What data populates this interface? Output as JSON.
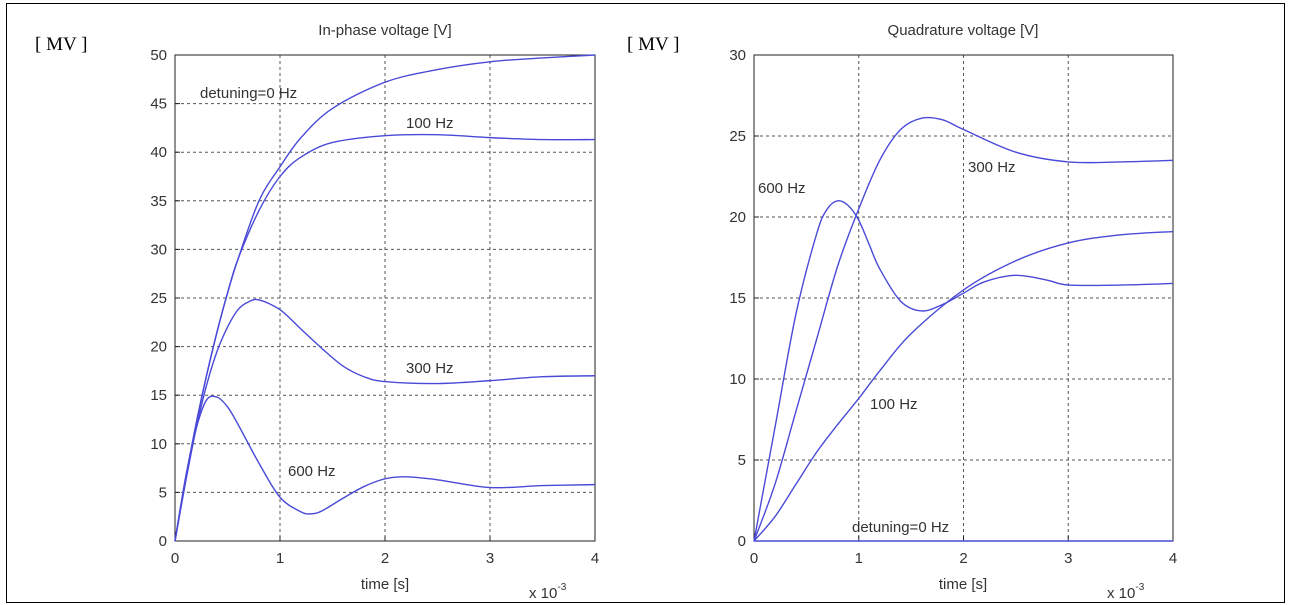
{
  "chart_data": [
    {
      "type": "line",
      "title": "In-phase voltage [V]",
      "unit_label": "[ MV ]",
      "xlabel": "time [s]",
      "x_multiplier": "x 10",
      "x_multiplier_exp": "-3",
      "xlim": [
        0,
        4
      ],
      "ylim": [
        0,
        50
      ],
      "xticks": [
        0,
        1,
        2,
        3,
        4
      ],
      "yticks": [
        0,
        5,
        10,
        15,
        20,
        25,
        30,
        35,
        40,
        45,
        50
      ],
      "grid": true,
      "series": [
        {
          "name": "detuning=0 Hz",
          "x": [
            0,
            0.1,
            0.2,
            0.3,
            0.4,
            0.5,
            0.6,
            0.8,
            1.0,
            1.2,
            1.5,
            2.0,
            2.5,
            3.0,
            3.5,
            4.0
          ],
          "y": [
            0,
            6.3,
            12,
            17,
            21.5,
            25.5,
            29,
            35,
            38.5,
            41.5,
            44.5,
            47.2,
            48.5,
            49.3,
            49.7,
            50
          ]
        },
        {
          "name": "100 Hz",
          "x": [
            0,
            0.1,
            0.2,
            0.3,
            0.4,
            0.5,
            0.6,
            0.8,
            1.0,
            1.2,
            1.5,
            2.0,
            2.5,
            3.0,
            3.5,
            4.0
          ],
          "y": [
            0,
            6.3,
            12,
            17,
            21.5,
            25.5,
            29,
            34,
            37.5,
            39.5,
            41,
            41.7,
            41.8,
            41.5,
            41.3,
            41.3
          ]
        },
        {
          "name": "300 Hz",
          "x": [
            0,
            0.1,
            0.2,
            0.3,
            0.4,
            0.5,
            0.6,
            0.7,
            0.8,
            1.0,
            1.2,
            1.4,
            1.6,
            1.8,
            2.0,
            2.5,
            3.0,
            3.5,
            4.0
          ],
          "y": [
            0,
            6,
            11.5,
            16,
            19.5,
            22,
            23.8,
            24.6,
            24.8,
            23.8,
            21.8,
            19.8,
            18,
            16.9,
            16.4,
            16.2,
            16.5,
            16.9,
            17
          ]
        },
        {
          "name": "600 Hz",
          "x": [
            0,
            0.1,
            0.2,
            0.3,
            0.4,
            0.5,
            0.6,
            0.8,
            1.0,
            1.2,
            1.3,
            1.4,
            1.6,
            1.8,
            2.0,
            2.2,
            2.5,
            3.0,
            3.5,
            4.0
          ],
          "y": [
            0,
            6.5,
            11.5,
            14.5,
            14.8,
            13.8,
            12,
            8,
            4.5,
            3,
            2.8,
            3.1,
            4.4,
            5.6,
            6.4,
            6.6,
            6.3,
            5.5,
            5.7,
            5.8
          ]
        }
      ],
      "annotations": [
        "detuning=0 Hz",
        "100 Hz",
        "300 Hz",
        "600 Hz"
      ]
    },
    {
      "type": "line",
      "title": "Quadrature voltage [V]",
      "unit_label": "[ MV ]",
      "xlabel": "time [s]",
      "x_multiplier": "x 10",
      "x_multiplier_exp": "-3",
      "xlim": [
        0,
        4
      ],
      "ylim": [
        0,
        30
      ],
      "xticks": [
        0,
        1,
        2,
        3,
        4
      ],
      "yticks": [
        0,
        5,
        10,
        15,
        20,
        25,
        30
      ],
      "grid": true,
      "series": [
        {
          "name": "detuning=0 Hz",
          "x": [
            0,
            4
          ],
          "y": [
            0,
            0
          ]
        },
        {
          "name": "100 Hz",
          "x": [
            0,
            0.2,
            0.4,
            0.6,
            0.8,
            1.0,
            1.2,
            1.5,
            2.0,
            2.5,
            3.0,
            3.5,
            4.0
          ],
          "y": [
            0,
            1.5,
            3.5,
            5.5,
            7.2,
            8.8,
            10.5,
            12.8,
            15.5,
            17.3,
            18.4,
            18.9,
            19.1
          ]
        },
        {
          "name": "300 Hz",
          "x": [
            0,
            0.2,
            0.4,
            0.6,
            0.8,
            1.0,
            1.2,
            1.4,
            1.6,
            1.8,
            2.0,
            2.5,
            3.0,
            3.5,
            4.0
          ],
          "y": [
            0,
            3.5,
            8,
            12.5,
            17,
            20.5,
            23.5,
            25.4,
            26.1,
            26,
            25.4,
            24,
            23.4,
            23.4,
            23.5
          ]
        },
        {
          "name": "600 Hz",
          "x": [
            0,
            0.2,
            0.4,
            0.6,
            0.7,
            0.8,
            0.9,
            1.0,
            1.1,
            1.2,
            1.4,
            1.6,
            1.8,
            2.0,
            2.2,
            2.5,
            2.8,
            3.0,
            3.5,
            4.0
          ],
          "y": [
            0,
            7,
            14,
            19,
            20.5,
            21,
            20.7,
            19.8,
            18.3,
            16.8,
            14.8,
            14.2,
            14.6,
            15.3,
            16,
            16.4,
            16.1,
            15.8,
            15.8,
            15.9
          ]
        }
      ],
      "annotations": [
        "600 Hz",
        "300 Hz",
        "100 Hz",
        "detuning=0 Hz"
      ]
    }
  ]
}
